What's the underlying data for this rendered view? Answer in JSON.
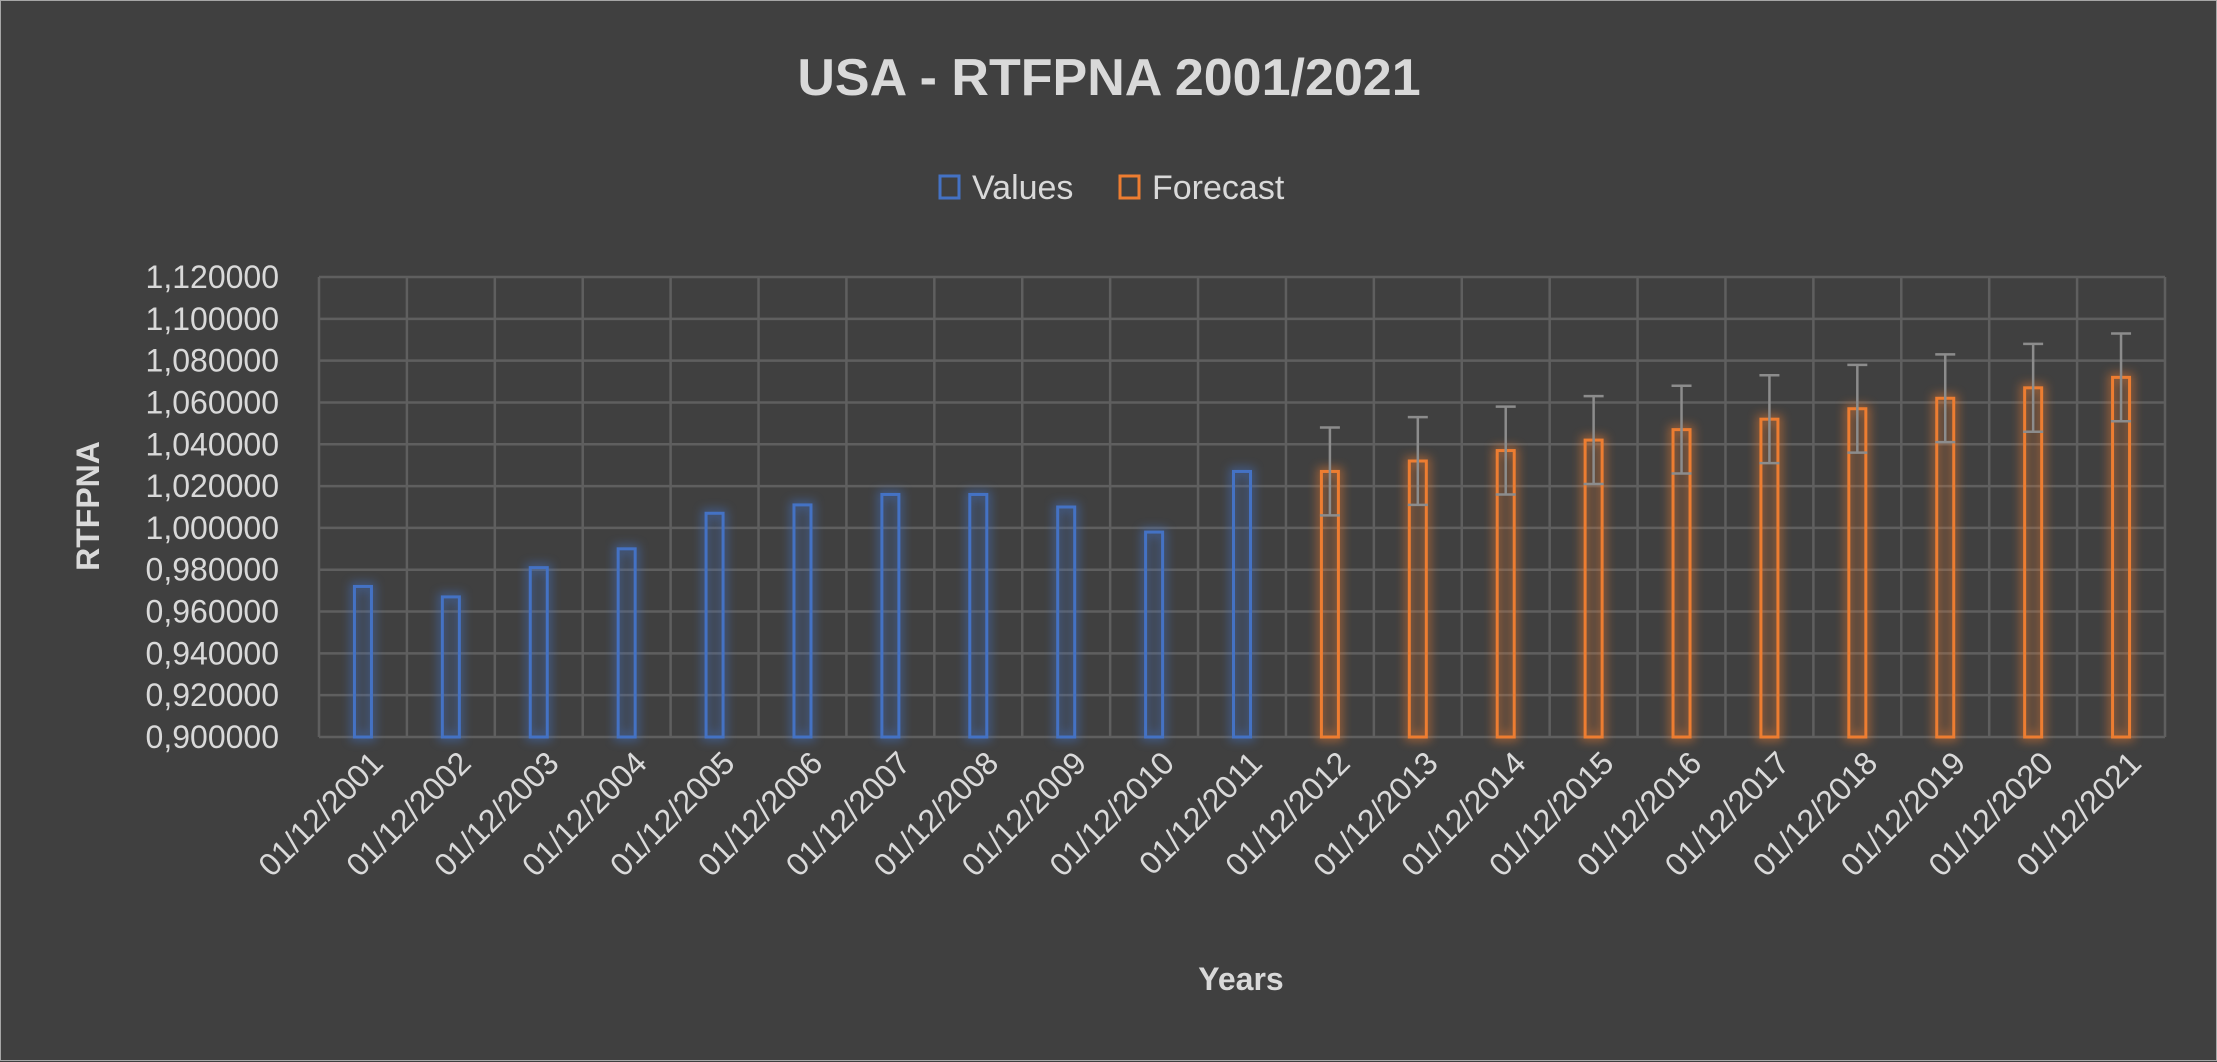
{
  "chart_data": {
    "type": "bar",
    "title": "USA - RTFPNA 2001/2021",
    "xlabel": "Years",
    "ylabel": "RTFPNA",
    "ylim": [
      0.9,
      1.12
    ],
    "y_tick_labels": [
      "0,900000",
      "0,920000",
      "0,940000",
      "0,960000",
      "0,980000",
      "1,000000",
      "1,020000",
      "1,040000",
      "1,060000",
      "1,080000",
      "1,100000",
      "1,120000"
    ],
    "y_ticks": [
      0.9,
      0.92,
      0.94,
      0.96,
      0.98,
      1.0,
      1.02,
      1.04,
      1.06,
      1.08,
      1.1,
      1.12
    ],
    "categories": [
      "01/12/2001",
      "01/12/2002",
      "01/12/2003",
      "01/12/2004",
      "01/12/2005",
      "01/12/2006",
      "01/12/2007",
      "01/12/2008",
      "01/12/2009",
      "01/12/2010",
      "01/12/2011",
      "01/12/2012",
      "01/12/2013",
      "01/12/2014",
      "01/12/2015",
      "01/12/2016",
      "01/12/2017",
      "01/12/2018",
      "01/12/2019",
      "01/12/2020",
      "01/12/2021"
    ],
    "grid": true,
    "legend_position": "top-center",
    "series": [
      {
        "name": "Values",
        "color": "#4472c4",
        "values": [
          0.972,
          0.967,
          0.981,
          0.99,
          1.007,
          1.011,
          1.016,
          1.016,
          1.01,
          0.998,
          1.027,
          null,
          null,
          null,
          null,
          null,
          null,
          null,
          null,
          null,
          null
        ]
      },
      {
        "name": "Forecast",
        "color": "#ed7d31",
        "values": [
          null,
          null,
          null,
          null,
          null,
          null,
          null,
          null,
          null,
          null,
          null,
          1.027,
          1.032,
          1.037,
          1.042,
          1.047,
          1.052,
          1.057,
          1.062,
          1.067,
          1.072
        ],
        "error_bars": {
          "color": "#8c8c8c",
          "lower": [
            null,
            null,
            null,
            null,
            null,
            null,
            null,
            null,
            null,
            null,
            null,
            1.006,
            1.011,
            1.016,
            1.021,
            1.026,
            1.031,
            1.036,
            1.041,
            1.046,
            1.051
          ],
          "upper": [
            null,
            null,
            null,
            null,
            null,
            null,
            null,
            null,
            null,
            null,
            null,
            1.048,
            1.053,
            1.058,
            1.063,
            1.068,
            1.073,
            1.078,
            1.083,
            1.088,
            1.093
          ]
        }
      }
    ]
  }
}
